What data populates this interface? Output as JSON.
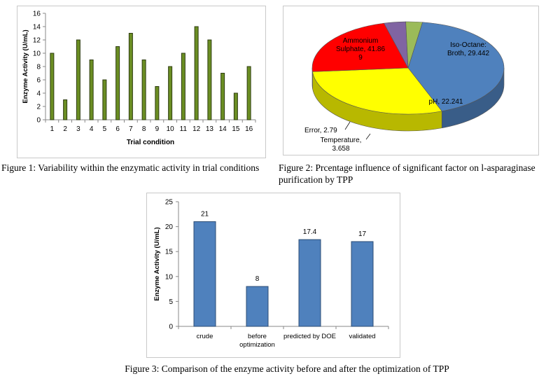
{
  "captions": {
    "fig1": "Figure 1: Variability within the enzymatic activity in trial conditions",
    "fig2": "Figure 2: Prcentage influence of significant factor on l-asparaginase purification by TPP",
    "fig3": "Figure 3: Comparison of the enzyme activity before and after the optimization of TPP"
  },
  "chart_data": [
    {
      "type": "bar",
      "categories": [
        "1",
        "2",
        "3",
        "4",
        "5",
        "6",
        "7",
        "8",
        "9",
        "10",
        "11",
        "12",
        "13",
        "14",
        "15",
        "16"
      ],
      "values": [
        10,
        3,
        12,
        9,
        6,
        11,
        13,
        9,
        5,
        8,
        10,
        14,
        12,
        7,
        4,
        8
      ],
      "xlabel": "Trial condition",
      "ylabel": "Enzyme Activity (U/mL)",
      "ylim": [
        0,
        16
      ],
      "yticks": [
        "0",
        "2",
        "4",
        "6",
        "8",
        "10",
        "12",
        "14",
        "16"
      ],
      "grid": false,
      "colors": {
        "fill": "#6b8e23",
        "stroke": "#2f3d12"
      }
    },
    {
      "type": "pie",
      "slices": [
        {
          "label": "Ammonium Sulphate, 41.869",
          "label_lines": [
            "Ammonium",
            "Sulphate, 41.86",
            "9"
          ],
          "value": 41.869,
          "color": "#4f81bd"
        },
        {
          "label": "Iso-Octane: Broth, 29.442",
          "label_lines": [
            "Iso-Octane:",
            "Broth, 29.442"
          ],
          "value": 29.442,
          "color": "#ffff00"
        },
        {
          "label": "pH, 22.241",
          "label_lines": [
            "pH, 22.241"
          ],
          "value": 22.241,
          "color": "#ff0000"
        },
        {
          "label": "Temperature, 3.658",
          "label_lines": [
            "Temperature,",
            "3.658"
          ],
          "value": 3.658,
          "color": "#8064a2"
        },
        {
          "label": "Error, 2.79",
          "label_lines": [
            "Error, 2.79"
          ],
          "value": 2.79,
          "color": "#9bbb59"
        }
      ]
    },
    {
      "type": "bar",
      "categories": [
        [
          "crude"
        ],
        [
          "before",
          "optimization"
        ],
        [
          "predicted by DOE"
        ],
        [
          "validated"
        ]
      ],
      "values": [
        21,
        8,
        17.4,
        17
      ],
      "data_labels": [
        "21",
        "8",
        "17.4",
        "17"
      ],
      "ylabel": "Enzyme Activity (U/mL)",
      "ylim": [
        0,
        25
      ],
      "yticks": [
        "0",
        "5",
        "10",
        "15",
        "20",
        "25"
      ],
      "grid": false,
      "colors": {
        "fill": "#4f81bd",
        "stroke": "#2c4d75"
      }
    }
  ]
}
